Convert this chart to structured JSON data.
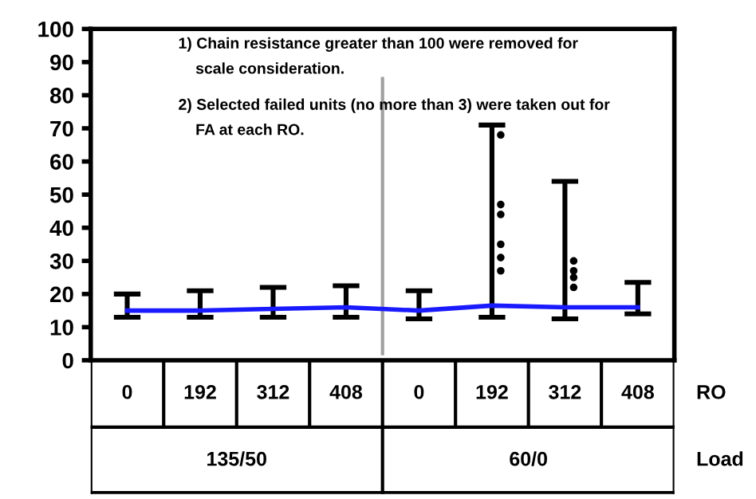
{
  "chart_data": {
    "type": "line",
    "categories": [
      "0",
      "192",
      "312",
      "408",
      "0",
      "192",
      "312",
      "408"
    ],
    "ylim": [
      0,
      100
    ],
    "yticks": [
      0,
      10,
      20,
      30,
      40,
      50,
      60,
      70,
      80,
      90,
      100
    ],
    "grid": false,
    "legend": false,
    "marker": "none",
    "line_style": "solid",
    "series": [
      {
        "color": "#1a1aff",
        "values": [
          15,
          15,
          15.5,
          16,
          15,
          16.5,
          16,
          16
        ],
        "errors": [
          [
            13,
            20
          ],
          [
            13,
            21
          ],
          [
            13,
            22
          ],
          [
            13,
            22.5
          ],
          [
            12.5,
            21
          ],
          [
            13,
            71
          ],
          [
            12.5,
            54
          ],
          [
            14,
            23.5
          ]
        ]
      },
      {
        "type": "scatter",
        "color": "#000000",
        "values": [
          null,
          null,
          null,
          null,
          null,
          68,
          30,
          null
        ]
      },
      {
        "type": "scatter",
        "color": "#000000",
        "values": [
          null,
          null,
          null,
          null,
          null,
          47,
          27,
          null
        ]
      },
      {
        "type": "scatter",
        "color": "#000000",
        "values": [
          null,
          null,
          null,
          null,
          null,
          44,
          25,
          null
        ]
      },
      {
        "type": "scatter",
        "color": "#000000",
        "values": [
          null,
          null,
          null,
          null,
          null,
          35,
          22,
          null
        ]
      },
      {
        "type": "scatter",
        "color": "#000000",
        "values": [
          null,
          null,
          null,
          null,
          null,
          31,
          null,
          null
        ]
      },
      {
        "type": "scatter",
        "color": "#000000",
        "values": [
          null,
          null,
          null,
          null,
          null,
          27,
          null,
          null
        ]
      }
    ],
    "annotations": [
      "1) Chain resistance greater than 100 were removed for\n    scale consideration.",
      "2) Selected failed units (no more than 3) were taken out for\n    FA at each RO.",
      "RO",
      "Load",
      "135/50",
      "60/0"
    ]
  }
}
